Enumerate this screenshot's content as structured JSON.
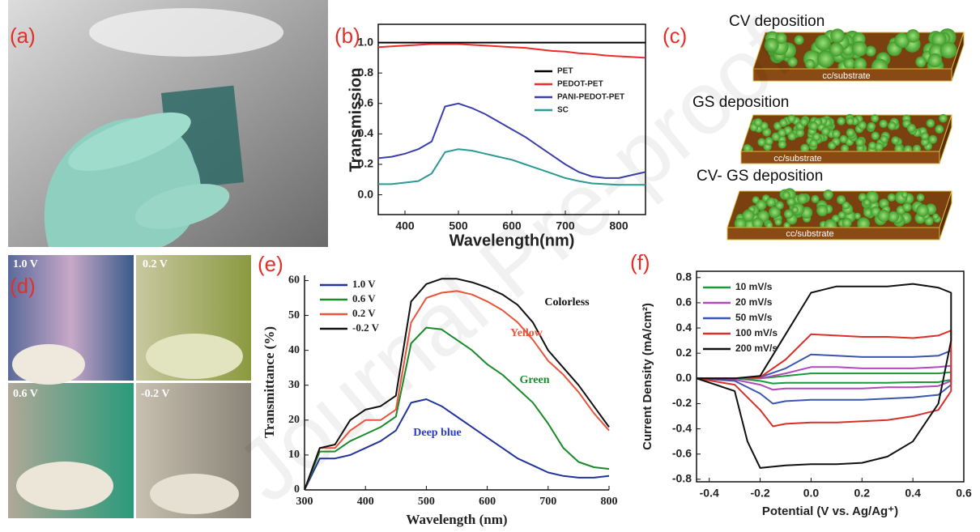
{
  "watermark": "Journal Pre-proof",
  "panel_labels": [
    "(a)",
    "(b)",
    "(c)",
    "(d)",
    "(e)",
    "(f)"
  ],
  "schematic": {
    "titles": [
      "CV deposition",
      "GS deposition",
      "CV- GS deposition"
    ],
    "substrate": "cc/substrate"
  },
  "photo_labels": [
    "1.0 V",
    "0.2 V",
    "0.6 V",
    "-0.2 V"
  ],
  "chart_data": [
    {
      "type": "line",
      "xlabel": "Wavelength(nm)",
      "ylabel": "Transmission",
      "x": [
        350,
        375,
        400,
        425,
        450,
        475,
        500,
        525,
        550,
        575,
        600,
        625,
        650,
        675,
        700,
        725,
        750,
        775,
        800,
        825,
        850
      ],
      "xlim": [
        350,
        850
      ],
      "xticks": [
        400,
        500,
        600,
        700,
        800
      ],
      "ylim": [
        -0.13,
        1.12
      ],
      "yticks": [
        {
          "value": 0,
          "label": "0.0"
        },
        0.2,
        0.4,
        0.6,
        0.8,
        {
          "value": 1,
          "label": "1.0"
        }
      ],
      "legend": "upper right",
      "series": [
        {
          "name": "PET",
          "color": "#000000",
          "values": [
            1,
            1,
            1,
            1,
            1,
            1,
            1,
            1,
            1,
            1,
            1,
            1,
            1,
            1,
            1,
            1,
            1,
            1,
            1,
            1,
            1
          ]
        },
        {
          "name": "PEDOT-PET",
          "color": "#ee2a2a",
          "values": [
            0.97,
            0.975,
            0.98,
            0.985,
            0.99,
            0.99,
            0.99,
            0.985,
            0.98,
            0.975,
            0.97,
            0.965,
            0.955,
            0.945,
            0.94,
            0.93,
            0.925,
            0.915,
            0.91,
            0.905,
            0.9
          ]
        },
        {
          "name": "PANI-PEDOT-PET",
          "color": "#3b3fa8",
          "values": [
            0.24,
            0.25,
            0.27,
            0.3,
            0.35,
            0.58,
            0.6,
            0.57,
            0.53,
            0.48,
            0.43,
            0.38,
            0.32,
            0.26,
            0.2,
            0.15,
            0.12,
            0.11,
            0.11,
            0.13,
            0.15
          ]
        },
        {
          "name": "SC",
          "color": "#2a9a92",
          "values": [
            0.07,
            0.07,
            0.08,
            0.09,
            0.14,
            0.28,
            0.3,
            0.29,
            0.27,
            0.25,
            0.23,
            0.2,
            0.17,
            0.14,
            0.11,
            0.09,
            0.075,
            0.07,
            0.065,
            0.065,
            0.065
          ]
        }
      ]
    },
    {
      "type": "line",
      "xlabel": "Wavelength (nm)",
      "ylabel": "Transmittance (%)",
      "x": [
        300,
        325,
        350,
        375,
        400,
        425,
        450,
        475,
        500,
        525,
        550,
        575,
        600,
        625,
        650,
        675,
        700,
        725,
        750,
        775,
        800
      ],
      "xlim": [
        300,
        800
      ],
      "xticks": [
        300,
        400,
        500,
        600,
        700,
        800
      ],
      "ylim": [
        0,
        61.5
      ],
      "yticks": [
        0,
        10,
        20,
        30,
        40,
        50,
        60
      ],
      "legend": "upper left",
      "series": [
        {
          "name": "1.0 V",
          "color": "#22349a",
          "values": [
            0,
            9,
            9,
            10,
            12,
            14,
            17,
            25,
            26,
            24,
            21,
            18,
            15,
            12,
            9,
            7,
            5,
            4,
            3.5,
            3.5,
            4
          ]
        },
        {
          "name": "0.6 V",
          "color": "#1a8a2a",
          "values": [
            0,
            11,
            11,
            14,
            16,
            18,
            21,
            42,
            46.5,
            46,
            43,
            40,
            36,
            33,
            29,
            25,
            19,
            12,
            8,
            6.5,
            6
          ]
        },
        {
          "name": "0.2 V",
          "color": "#e8553a",
          "values": [
            0,
            12,
            12,
            17,
            20,
            20,
            23,
            48,
            55,
            56.5,
            57,
            56,
            54,
            51.5,
            48,
            43,
            37,
            33,
            28,
            22,
            17
          ]
        },
        {
          "name": "-0.2 V",
          "color": "#111111",
          "values": [
            0,
            12,
            13,
            20,
            23,
            24,
            27,
            54,
            59,
            60.5,
            60.5,
            59.5,
            58,
            56,
            53,
            48,
            40,
            35,
            30,
            24,
            18
          ]
        }
      ],
      "annotations": [
        {
          "text": "Colorless",
          "color": "#111111"
        },
        {
          "text": "Yellow",
          "color": "#e8553a"
        },
        {
          "text": "Green",
          "color": "#1a8a2a"
        },
        {
          "text": "Deep blue",
          "color": "#2a3ad0"
        }
      ]
    },
    {
      "type": "line",
      "xlabel": "Potential (V vs. Ag/Ag⁺)",
      "ylabel": "Current Density (mA/cm²)",
      "xlim": [
        -0.45,
        0.6
      ],
      "xticks": [
        -0.4,
        -0.2,
        {
          "value": 0,
          "label": "0.0"
        },
        0.2,
        0.4,
        0.6
      ],
      "ylim": [
        -0.82,
        0.85
      ],
      "yticks": [
        -0.8,
        -0.6,
        -0.4,
        -0.2,
        {
          "value": 0,
          "label": "0.0"
        },
        0.2,
        0.4,
        0.6,
        0.8
      ],
      "legend": "upper left",
      "series": [
        {
          "name": "10 mV/s",
          "color": "#1a9a3a",
          "x": [
            -0.45,
            -0.3,
            -0.2,
            -0.1,
            0,
            0.1,
            0.2,
            0.3,
            0.4,
            0.5,
            0.55,
            0.55,
            0.5,
            0.4,
            0.3,
            0.2,
            0.1,
            0,
            -0.1,
            -0.15,
            -0.2,
            -0.3,
            -0.45
          ],
          "values": [
            0,
            0,
            0,
            0.02,
            0.04,
            0.04,
            0.04,
            0.04,
            0.04,
            0.04,
            0.05,
            -0.01,
            -0.03,
            -0.03,
            -0.035,
            -0.035,
            -0.035,
            -0.035,
            -0.035,
            -0.04,
            -0.02,
            0,
            0
          ]
        },
        {
          "name": "20 mV/s",
          "color": "#b04ab8",
          "x": [
            -0.45,
            -0.3,
            -0.2,
            -0.1,
            0,
            0.1,
            0.2,
            0.3,
            0.4,
            0.5,
            0.55,
            0.55,
            0.5,
            0.4,
            0.3,
            0.2,
            0.1,
            0,
            -0.1,
            -0.15,
            -0.2,
            -0.3,
            -0.45
          ],
          "values": [
            0,
            0,
            0,
            0.04,
            0.09,
            0.09,
            0.08,
            0.08,
            0.08,
            0.09,
            0.1,
            -0.02,
            -0.06,
            -0.07,
            -0.07,
            -0.08,
            -0.08,
            -0.08,
            -0.08,
            -0.09,
            -0.05,
            -0.01,
            0
          ]
        },
        {
          "name": "50 mV/s",
          "color": "#3a56b0",
          "x": [
            -0.45,
            -0.3,
            -0.2,
            -0.1,
            0,
            0.1,
            0.2,
            0.3,
            0.4,
            0.5,
            0.55,
            0.55,
            0.5,
            0.4,
            0.3,
            0.2,
            0.1,
            0,
            -0.1,
            -0.15,
            -0.2,
            -0.3,
            -0.45
          ],
          "values": [
            0,
            0,
            0.01,
            0.08,
            0.19,
            0.18,
            0.17,
            0.17,
            0.17,
            0.18,
            0.22,
            -0.05,
            -0.13,
            -0.15,
            -0.16,
            -0.17,
            -0.17,
            -0.17,
            -0.18,
            -0.2,
            -0.12,
            -0.02,
            0
          ]
        },
        {
          "name": "100 mV/s",
          "color": "#d8302a",
          "x": [
            -0.45,
            -0.3,
            -0.2,
            -0.1,
            0,
            0.1,
            0.2,
            0.3,
            0.4,
            0.5,
            0.55,
            0.55,
            0.5,
            0.4,
            0.3,
            0.2,
            0.1,
            0,
            -0.1,
            -0.15,
            -0.2,
            -0.3,
            -0.45
          ],
          "values": [
            0,
            0,
            0.01,
            0.15,
            0.35,
            0.34,
            0.33,
            0.33,
            0.32,
            0.34,
            0.38,
            -0.1,
            -0.25,
            -0.3,
            -0.33,
            -0.34,
            -0.35,
            -0.35,
            -0.36,
            -0.38,
            -0.25,
            -0.05,
            0
          ]
        },
        {
          "name": "200 mV/s",
          "color": "#111111",
          "x": [
            -0.45,
            -0.3,
            -0.2,
            -0.1,
            0,
            0.1,
            0.2,
            0.3,
            0.4,
            0.5,
            0.55,
            0.55,
            0.5,
            0.4,
            0.3,
            0.2,
            0.1,
            0,
            -0.1,
            -0.2,
            -0.25,
            -0.3,
            -0.45
          ],
          "values": [
            0,
            0,
            0.02,
            0.35,
            0.68,
            0.73,
            0.73,
            0.73,
            0.75,
            0.72,
            0.68,
            0.3,
            -0.2,
            -0.5,
            -0.62,
            -0.67,
            -0.68,
            -0.68,
            -0.69,
            -0.71,
            -0.5,
            -0.1,
            0
          ]
        }
      ]
    }
  ]
}
